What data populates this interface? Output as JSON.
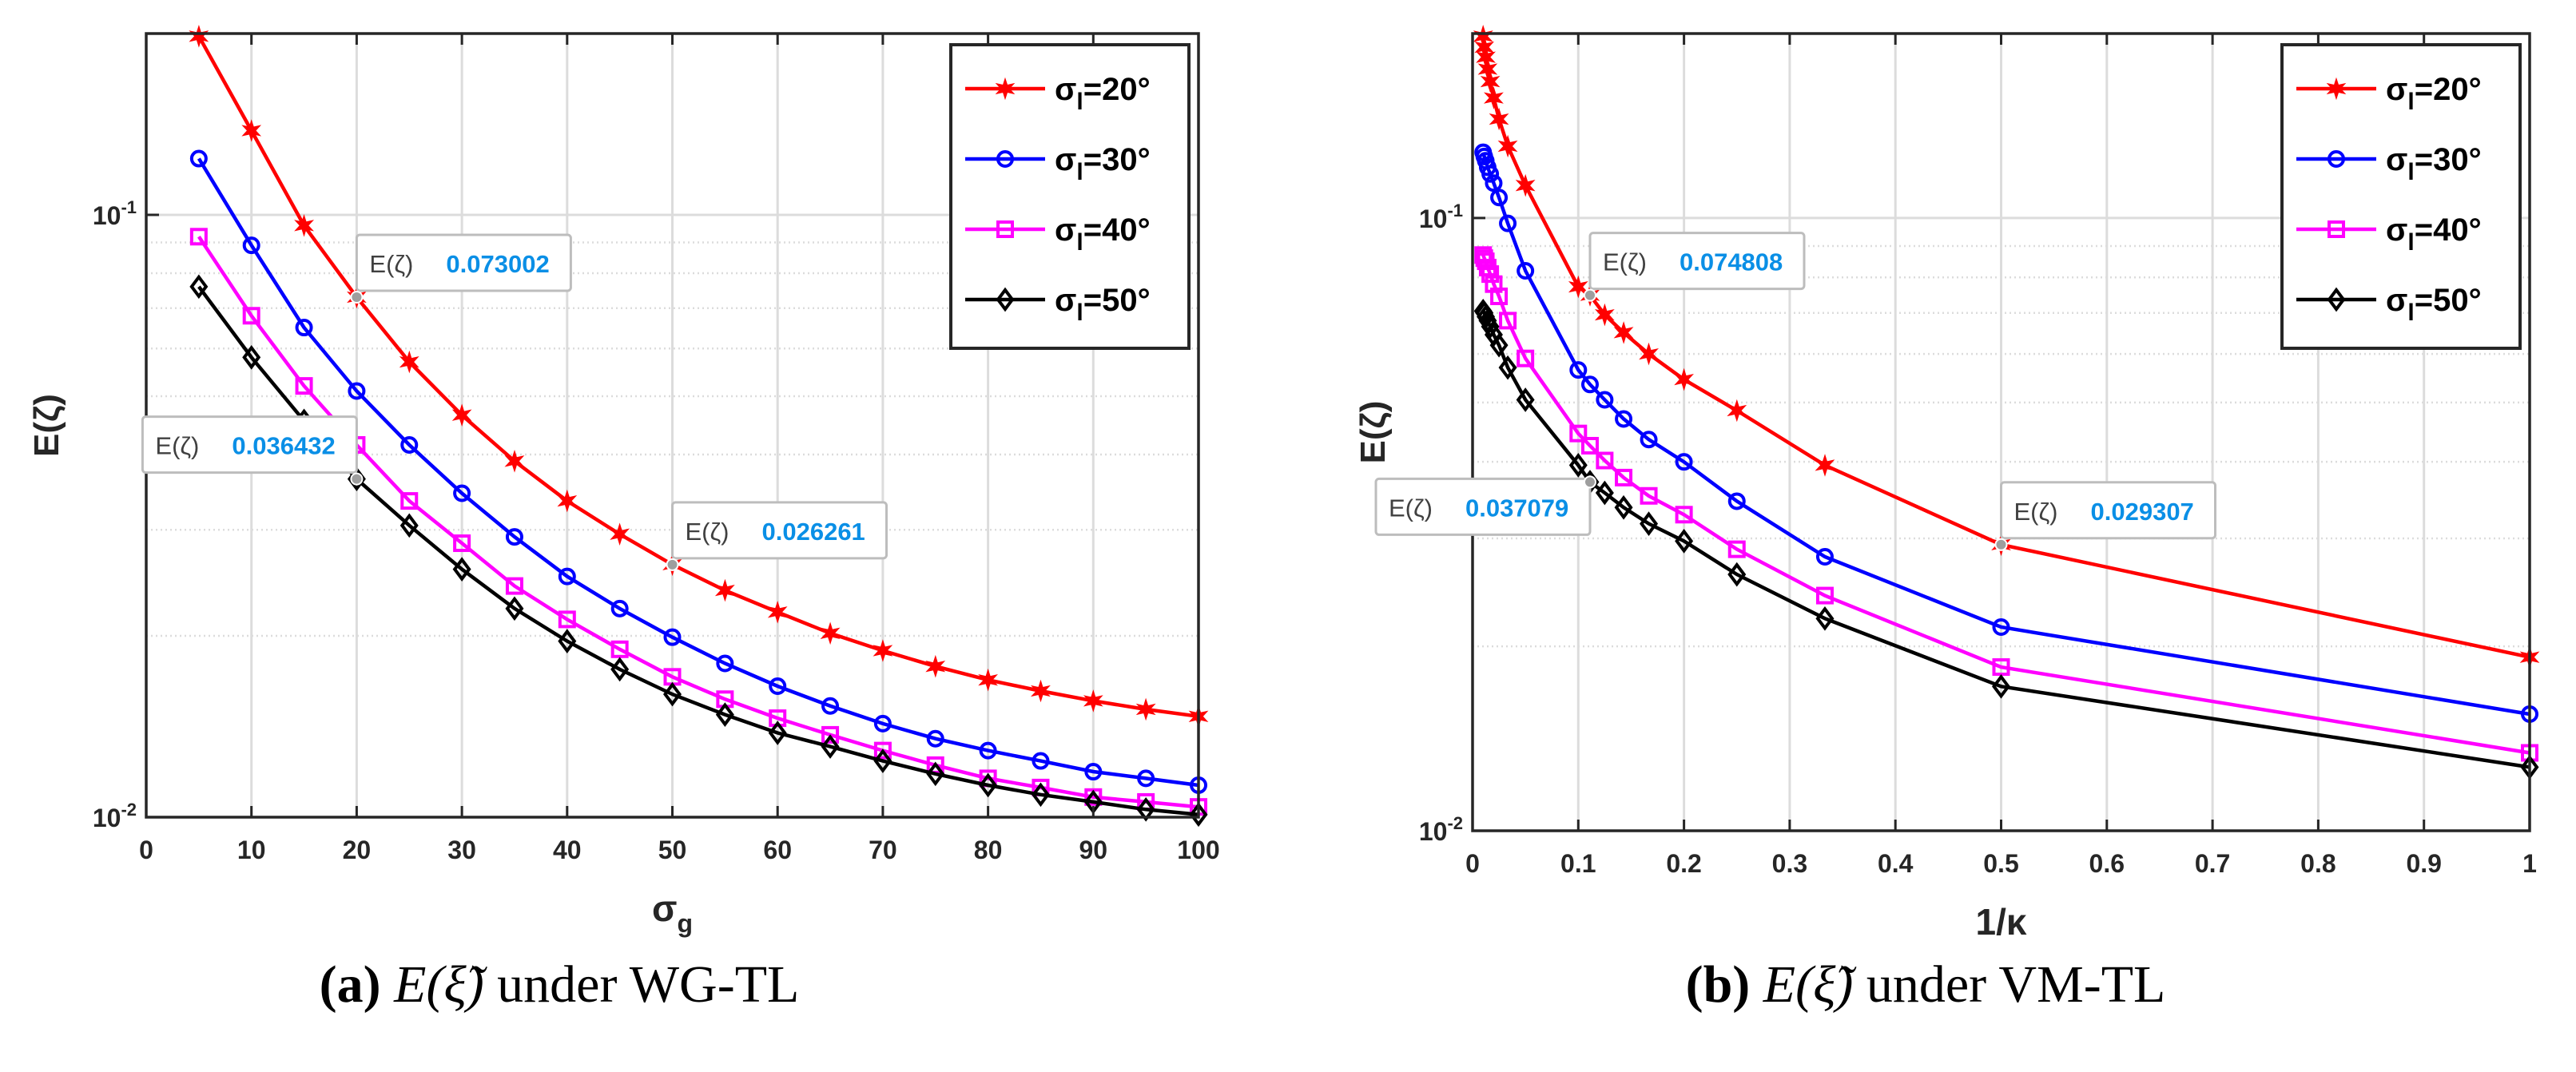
{
  "colors": {
    "series": [
      "#ff0000",
      "#0000ff",
      "#ff00ff",
      "#000000"
    ],
    "datatip_value": "#0a8fe6",
    "datatip_border": "#bdbdbd",
    "grid": "#dcdcdc",
    "axis": "#262626"
  },
  "captions": [
    {
      "label": "(a)",
      "math": "E(ξ̃)",
      "text": "under WG-TL"
    },
    {
      "label": "(b)",
      "math": "E(ξ̃)",
      "text": "under VM-TL"
    }
  ],
  "chart_data": [
    {
      "type": "line",
      "yscale": "log",
      "xlabel": "σg",
      "ylabel": "E(ζ)",
      "xlim": [
        0,
        100
      ],
      "ylim": [
        0.01,
        0.2
      ],
      "xticks": [
        0,
        10,
        20,
        30,
        40,
        50,
        60,
        70,
        80,
        90,
        100
      ],
      "xtick_labels": [
        "0",
        "10",
        "20",
        "30",
        "40",
        "50",
        "60",
        "70",
        "80",
        "90",
        "100"
      ],
      "ytick_labels": [
        {
          "value": 0.1,
          "label": "10-1"
        },
        {
          "value": 0.01,
          "label": "10-2"
        }
      ],
      "legend_position": "top-right",
      "x": [
        5,
        10,
        15,
        20,
        25,
        30,
        35,
        40,
        45,
        50,
        55,
        60,
        65,
        70,
        75,
        80,
        85,
        90,
        95,
        100
      ],
      "series": [
        {
          "name": "σl=20°",
          "marker": "star",
          "values": [
            0.198,
            0.138,
            0.096,
            0.073,
            0.057,
            0.0465,
            0.039,
            0.0335,
            0.0295,
            0.02626,
            0.0238,
            0.0219,
            0.0202,
            0.0189,
            0.0178,
            0.0169,
            0.0162,
            0.0156,
            0.0151,
            0.0147
          ]
        },
        {
          "name": "σl=30°",
          "marker": "circle",
          "values": [
            0.124,
            0.089,
            0.065,
            0.051,
            0.0415,
            0.0345,
            0.0292,
            0.0251,
            0.0222,
            0.0199,
            0.018,
            0.0165,
            0.0153,
            0.0143,
            0.0135,
            0.0129,
            0.0124,
            0.0119,
            0.0116,
            0.0113
          ]
        },
        {
          "name": "σl=40°",
          "marker": "square",
          "values": [
            0.092,
            0.068,
            0.052,
            0.0415,
            0.0335,
            0.0285,
            0.0242,
            0.0213,
            0.019,
            0.0171,
            0.0157,
            0.0146,
            0.0137,
            0.0129,
            0.0122,
            0.0116,
            0.0112,
            0.0108,
            0.0106,
            0.0104
          ]
        },
        {
          "name": "σl=50°",
          "marker": "diamond",
          "values": [
            0.076,
            0.058,
            0.0455,
            0.036432,
            0.0305,
            0.0258,
            0.0222,
            0.0196,
            0.0176,
            0.016,
            0.0148,
            0.0138,
            0.0131,
            0.0124,
            0.0118,
            0.0113,
            0.0109,
            0.0106,
            0.0103,
            0.0101
          ]
        }
      ],
      "annotations": [
        {
          "label": "E(ζ)",
          "value": "0.073002",
          "x": 20,
          "y": 0.073002,
          "placement": "upper-right"
        },
        {
          "label": "E(ζ)",
          "value": "0.036432",
          "x": 20,
          "y": 0.036432,
          "placement": "upper-left"
        },
        {
          "label": "E(ζ)",
          "value": "0.026261",
          "x": 50,
          "y": 0.026261,
          "placement": "upper-right"
        }
      ]
    },
    {
      "type": "line",
      "yscale": "log",
      "xlabel": "1/κ",
      "ylabel": "E(ζ)",
      "xlim": [
        0,
        1
      ],
      "ylim": [
        0.01,
        0.2
      ],
      "xticks": [
        0,
        0.1,
        0.2,
        0.3,
        0.4,
        0.5,
        0.6,
        0.7,
        0.8,
        0.9,
        1
      ],
      "xtick_labels": [
        "0",
        "0.1",
        "0.2",
        "0.3",
        "0.4",
        "0.5",
        "0.6",
        "0.7",
        "0.8",
        "0.9",
        "1"
      ],
      "ytick_labels": [
        {
          "value": 0.1,
          "label": "10-1"
        },
        {
          "value": 0.01,
          "label": "10-2"
        }
      ],
      "legend_position": "top-right",
      "x": [
        0.01,
        0.0111,
        0.0125,
        0.0143,
        0.0167,
        0.02,
        0.025,
        0.0333,
        0.05,
        0.1,
        0.1111,
        0.125,
        0.1429,
        0.1667,
        0.2,
        0.25,
        0.3333,
        0.5,
        1
      ],
      "series": [
        {
          "name": "σl=20°",
          "marker": "star",
          "values": [
            0.198,
            0.19,
            0.183,
            0.175,
            0.167,
            0.157,
            0.145,
            0.131,
            0.113,
            0.0772,
            0.074808,
            0.0695,
            0.065,
            0.06,
            0.0545,
            0.0485,
            0.0395,
            0.029307,
            0.0192
          ]
        },
        {
          "name": "σl=30°",
          "marker": "circle",
          "values": [
            0.128,
            0.126,
            0.124,
            0.121,
            0.118,
            0.114,
            0.108,
            0.098,
            0.082,
            0.0565,
            0.0535,
            0.0505,
            0.047,
            0.0435,
            0.04,
            0.0345,
            0.028,
            0.0215,
            0.0155
          ]
        },
        {
          "name": "σl=40°",
          "marker": "square",
          "values": [
            0.087,
            0.086,
            0.085,
            0.083,
            0.081,
            0.078,
            0.0745,
            0.068,
            0.059,
            0.0445,
            0.0425,
            0.0402,
            0.0377,
            0.0352,
            0.0328,
            0.0288,
            0.0242,
            0.0185,
            0.0134
          ]
        },
        {
          "name": "σl=50°",
          "marker": "diamond",
          "values": [
            0.0705,
            0.07,
            0.069,
            0.068,
            0.0665,
            0.0645,
            0.062,
            0.057,
            0.0505,
            0.0395,
            0.037079,
            0.0356,
            0.0337,
            0.0317,
            0.0297,
            0.0262,
            0.0222,
            0.0172,
            0.0127
          ]
        }
      ],
      "annotations": [
        {
          "label": "E(ζ)",
          "value": "0.074808",
          "x": 0.1111,
          "y": 0.074808,
          "placement": "upper-right"
        },
        {
          "label": "E(ζ)",
          "value": "0.037079",
          "x": 0.1111,
          "y": 0.037079,
          "placement": "lower-left"
        },
        {
          "label": "E(ζ)",
          "value": "0.029307",
          "x": 0.5,
          "y": 0.029307,
          "placement": "upper-right"
        }
      ]
    }
  ]
}
